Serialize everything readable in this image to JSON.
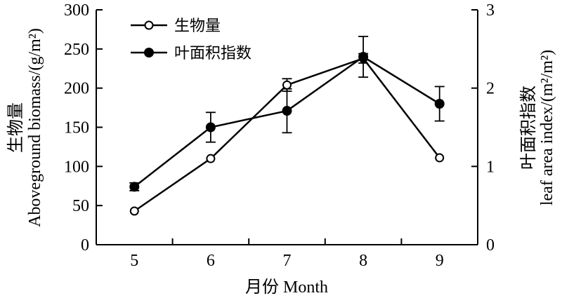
{
  "chart_data": {
    "type": "line",
    "x": [
      5,
      6,
      7,
      8,
      9
    ],
    "xlabel": "月份 Month",
    "ylabel_left": "Aboveground biomass/(g/m²)",
    "ylabel_left_cn": "生物量",
    "ylabel_right": "leaf area index/(m²/m²)",
    "ylabel_right_cn": "叶面积指数",
    "ylim_left": [
      0,
      300
    ],
    "ylim_right": [
      0,
      3
    ],
    "yticks_left": [
      "0",
      "50",
      "100",
      "150",
      "200",
      "250",
      "300"
    ],
    "yticks_right": [
      "0",
      "1",
      "2",
      "3"
    ],
    "xticks": [
      "5",
      "6",
      "7",
      "8",
      "9"
    ],
    "series": [
      {
        "name": "生物量",
        "axis": "left",
        "marker": "open-circle",
        "values": [
          43,
          110,
          204,
          238,
          111
        ],
        "errors": [
          0,
          0,
          8,
          6,
          0
        ]
      },
      {
        "name": "叶面积指数",
        "axis": "right",
        "marker": "filled-circle",
        "values": [
          0.74,
          1.5,
          1.71,
          2.4,
          1.8
        ],
        "errors": [
          0.05,
          0.19,
          0.28,
          0.26,
          0.22
        ]
      }
    ],
    "legend": "top-left",
    "grid": false
  }
}
